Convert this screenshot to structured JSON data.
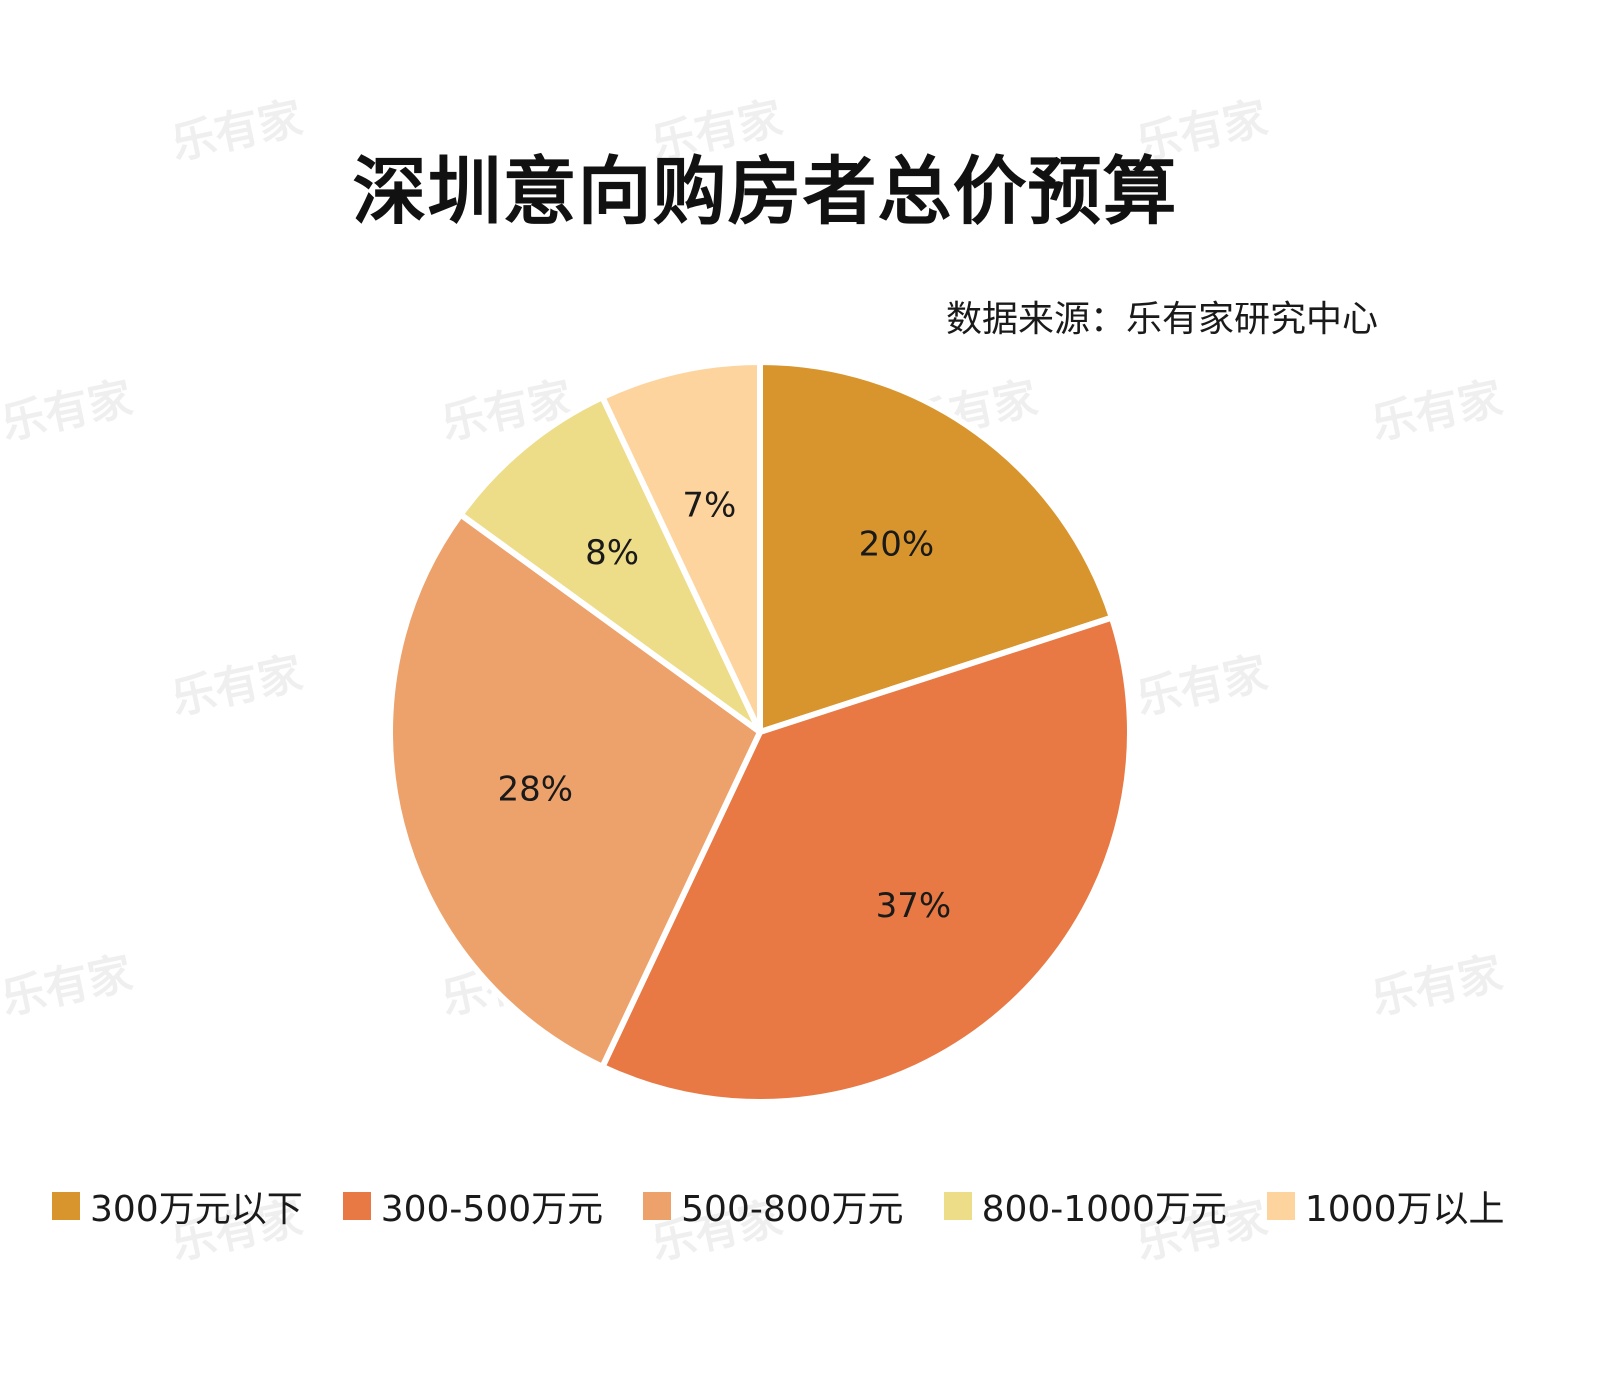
{
  "watermark": "乐有家",
  "chart_data": {
    "type": "pie",
    "title": "深圳意向购房者总价预算",
    "source": "数据来源：乐有家研究中心",
    "categories": [
      "300万元以下",
      "300-500万元",
      "500-800万元",
      "800-1000万元",
      "1000万以上"
    ],
    "values": [
      20,
      37,
      28,
      8,
      7
    ],
    "labels": [
      "20%",
      "37%",
      "28%",
      "8%",
      "7%"
    ],
    "colors": [
      "#D9952D",
      "#E87944",
      "#EDA26C",
      "#EDDC88",
      "#FDD49E"
    ],
    "start": "12 o'clock",
    "direction": "clockwise",
    "legend_position": "bottom"
  }
}
